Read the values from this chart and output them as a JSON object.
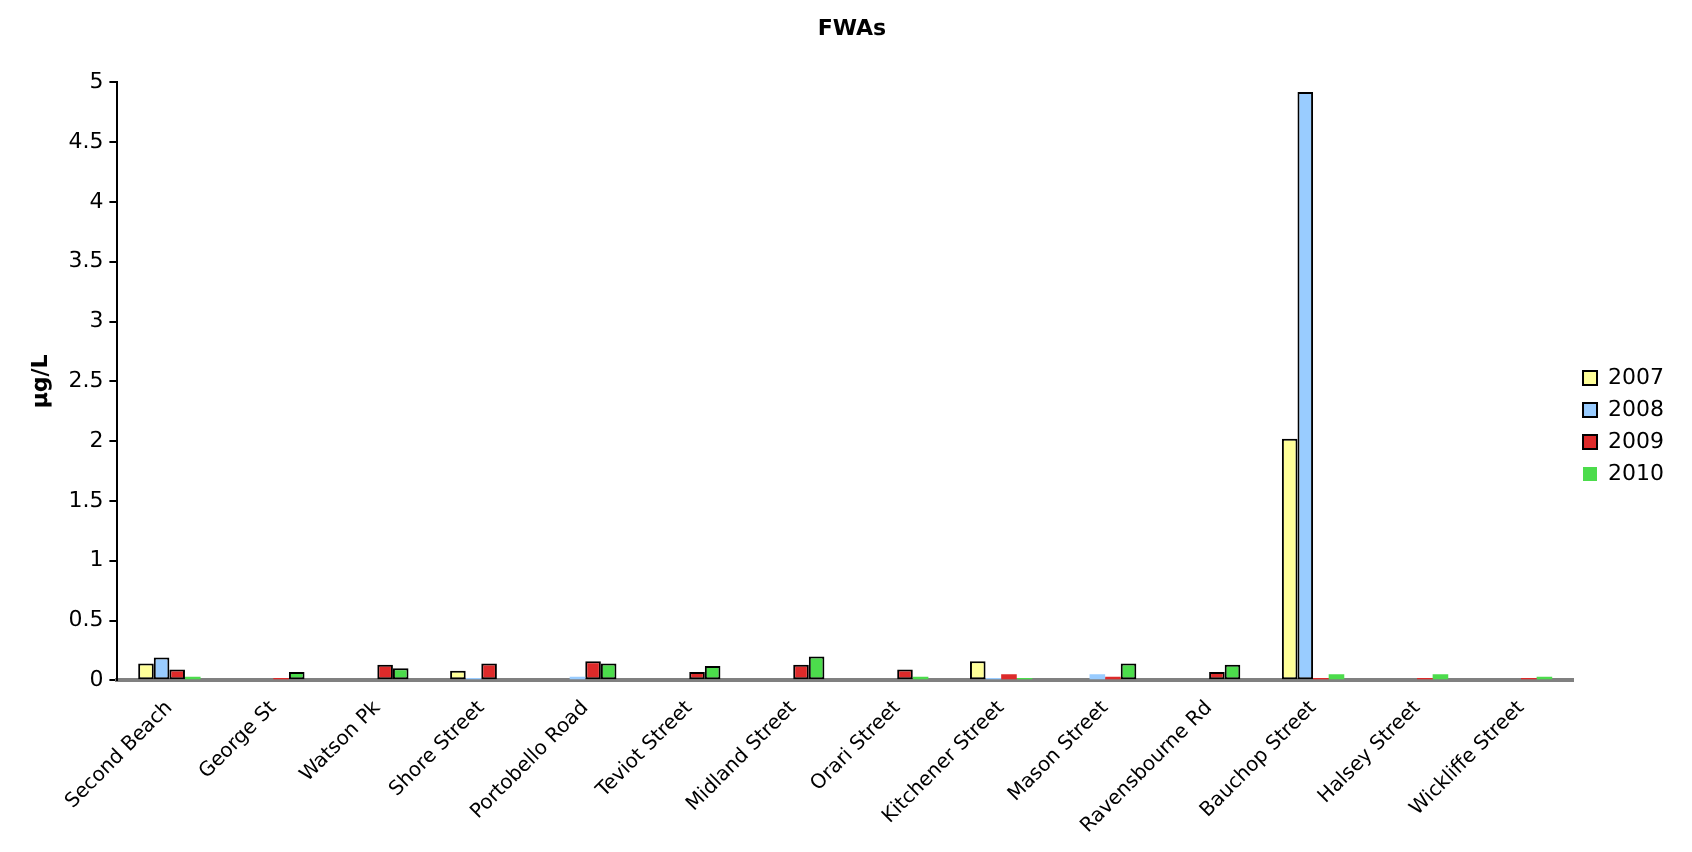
{
  "chart_data": {
    "type": "bar",
    "title": "FWAs",
    "ylabel": "µg/L",
    "categories": [
      "Second Beach",
      "George St",
      "Watson Pk",
      "Shore Street",
      "Portobello Road",
      "Teviot Street",
      "Midland Street",
      "Orari Street",
      "Kitchener Street",
      "Mason Street",
      "Ravensbourne Rd",
      "Bauchop Street",
      "Halsey Street",
      "Wickliffe Street"
    ],
    "series": [
      {
        "name": "2007",
        "color": "#ffff99",
        "values": [
          0.14,
          null,
          null,
          0.08,
          null,
          null,
          null,
          null,
          0.16,
          null,
          null,
          2.02,
          null,
          null
        ]
      },
      {
        "name": "2008",
        "color": "#99ccff",
        "values": [
          0.19,
          null,
          null,
          0.02,
          0.03,
          null,
          null,
          null,
          0.02,
          0.05,
          null,
          4.92,
          null,
          null
        ]
      },
      {
        "name": "2009",
        "color": "#dd2a2a",
        "values": [
          0.09,
          0.02,
          0.13,
          0.14,
          0.16,
          0.07,
          0.13,
          0.09,
          0.05,
          0.03,
          0.07,
          0.02,
          0.02,
          0.02
        ]
      },
      {
        "name": "2010",
        "color": "#4cdc4c",
        "values": [
          0.03,
          0.07,
          0.1,
          null,
          0.14,
          0.12,
          0.2,
          0.03,
          0.02,
          0.14,
          0.13,
          0.05,
          0.05,
          0.03
        ]
      }
    ],
    "ylim": [
      0,
      5
    ],
    "yticks": [
      0,
      0.5,
      1,
      1.5,
      2,
      2.5,
      3,
      3.5,
      4,
      4.5,
      5
    ],
    "grid": false,
    "legend": "right"
  }
}
